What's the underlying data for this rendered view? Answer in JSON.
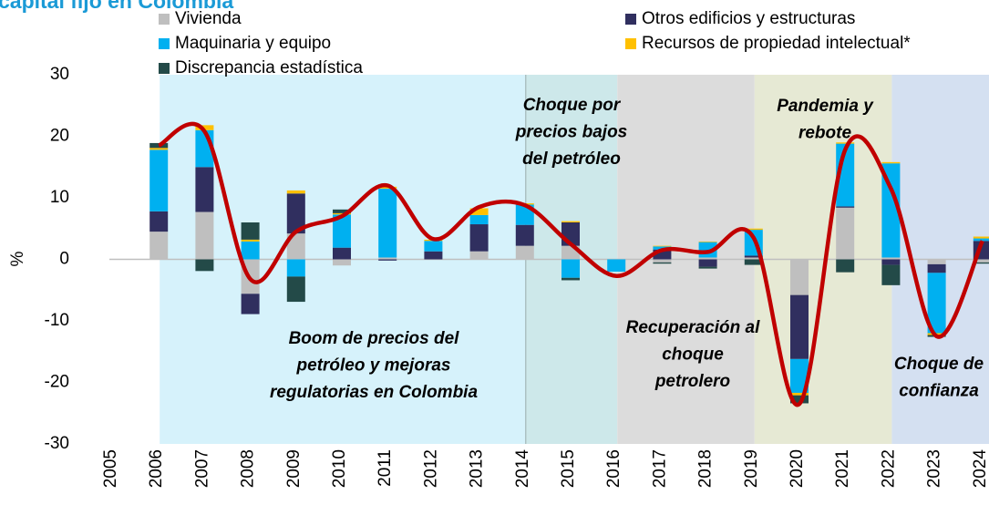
{
  "chart_data": {
    "type": "stacked-bar-line",
    "title": "capital fijo en Colombia",
    "y_label": "%",
    "categories": [
      "2005",
      "2006",
      "2007",
      "2008",
      "2009",
      "2010",
      "2011",
      "2012",
      "2013",
      "2014",
      "2015",
      "2016",
      "2017",
      "2018",
      "2019",
      "2020",
      "2021",
      "2022",
      "2023",
      "2024"
    ],
    "ylim": [
      -30,
      30
    ],
    "yticks": [
      -30,
      -20,
      -10,
      0,
      10,
      20,
      30
    ],
    "series": [
      {
        "name": "Vivienda",
        "color": "#bfbfbf",
        "values": [
          null,
          4.5,
          7.7,
          -5.6,
          4.2,
          -1.0,
          0.3,
          0,
          1.3,
          2.2,
          2.2,
          0,
          -0.5,
          0.3,
          0.3,
          -5.8,
          8.4,
          0.3,
          -0.8,
          -0.5
        ]
      },
      {
        "name": "Otros edificios y estructuras",
        "color": "#302f5f",
        "values": [
          null,
          3.3,
          7.3,
          -3.3,
          6.5,
          1.9,
          -0.2,
          1.3,
          4.4,
          3.4,
          3.8,
          0,
          1.6,
          -1.2,
          0.3,
          -10.4,
          0.2,
          -0.9,
          -1.4,
          3.0
        ]
      },
      {
        "name": "Maquinaria y equipo",
        "color": "#00b0f0",
        "values": [
          null,
          10.0,
          6.0,
          2.9,
          -2.8,
          5.4,
          11.2,
          1.7,
          1.5,
          3.3,
          -3.0,
          -2.0,
          0.5,
          2.5,
          4.2,
          -5.5,
          10.2,
          15.3,
          -9.8,
          0.4
        ]
      },
      {
        "name": "Recursos de propiedad intelectual*",
        "color": "#ffc000",
        "values": [
          null,
          0.3,
          0.8,
          0.3,
          0.5,
          0.2,
          0.3,
          0.2,
          1.1,
          0.2,
          0.2,
          0,
          0.1,
          0.1,
          0.2,
          -0.4,
          0.2,
          0.2,
          -0.3,
          0.3
        ]
      },
      {
        "name": "Discrepancia estadística",
        "color": "#234a48",
        "values": [
          null,
          0.8,
          -1.9,
          2.8,
          -4.1,
          0.6,
          0,
          0,
          0,
          0,
          -0.4,
          0,
          -0.2,
          -0.3,
          -0.9,
          -1.3,
          -2.1,
          -3.3,
          -0.3,
          -0.2
        ]
      }
    ],
    "line": {
      "color": "#c00000",
      "values": [
        null,
        18.5,
        20.8,
        -3.2,
        4.5,
        7.0,
        12.0,
        3.3,
        8.5,
        8.8,
        2.5,
        -2.7,
        1.5,
        1.2,
        3.5,
        -23.5,
        17.8,
        11.5,
        -12.5,
        3.0
      ]
    },
    "periods": [
      {
        "start": "2006",
        "end": "2014",
        "color": "#d6f2fb",
        "lines": [
          "Boom de precios del",
          "petróleo y mejoras",
          "regulatorias en Colombia"
        ]
      },
      {
        "start": "2014",
        "end": "2016",
        "color": "#cde8ea",
        "lines": [
          "Choque por",
          "precios bajos",
          "del petróleo"
        ]
      },
      {
        "start": "2016",
        "end": "2019",
        "color": "#dcdcdc",
        "lines": [
          "Recuperación al",
          "choque",
          "petrolero"
        ]
      },
      {
        "start": "2019",
        "end": "2022",
        "color": "#e6e9d4",
        "lines": [
          "Pandemia y",
          "rebote"
        ]
      },
      {
        "start": "2022",
        "end": "2024",
        "color": "#d4e0f1",
        "lines": [
          "Choque de",
          "confianza"
        ]
      }
    ]
  }
}
